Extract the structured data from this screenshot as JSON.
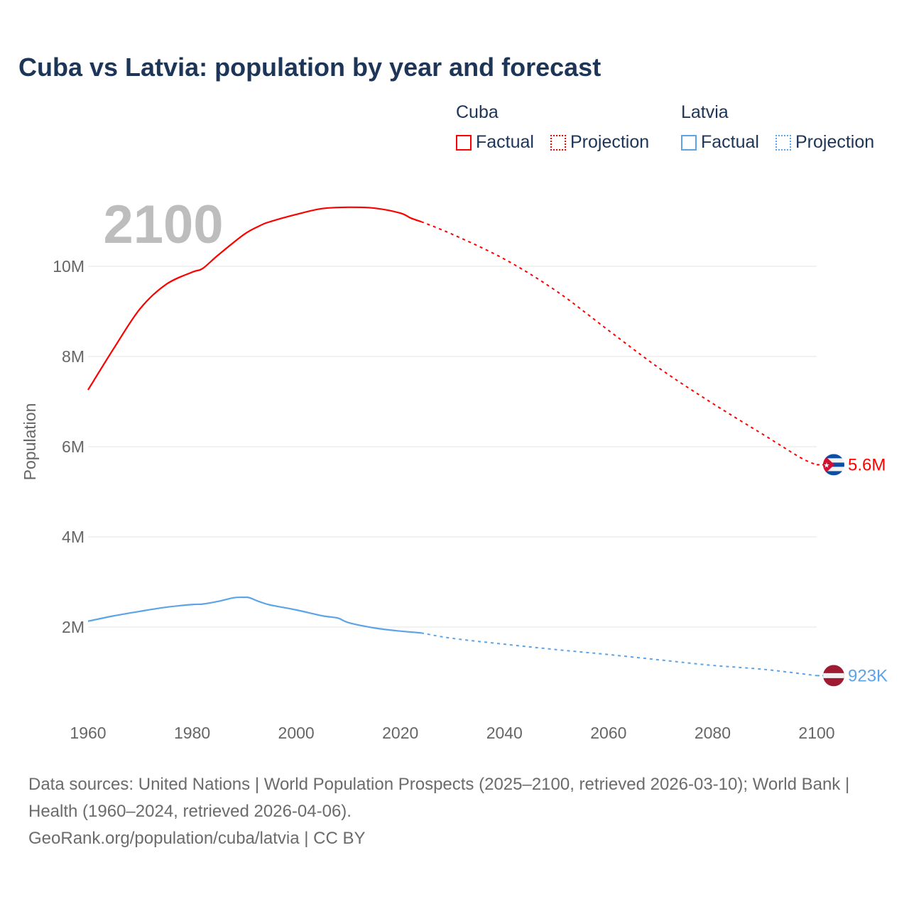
{
  "chart_data": {
    "type": "line",
    "title": "Cuba vs Latvia: population by year and forecast",
    "ylabel": "Population",
    "xlabel": "",
    "xlim": [
      1960,
      2100
    ],
    "ylim": [
      0,
      11500000
    ],
    "x_ticks": [
      "1960",
      "1980",
      "2000",
      "2020",
      "2040",
      "2060",
      "2080",
      "2100"
    ],
    "y_ticks": [
      {
        "value": 2000000,
        "label": "2M"
      },
      {
        "value": 4000000,
        "label": "4M"
      },
      {
        "value": 6000000,
        "label": "6M"
      },
      {
        "value": 8000000,
        "label": "8M"
      },
      {
        "value": 10000000,
        "label": "10M"
      }
    ],
    "grid": true,
    "year_overlay": "2100",
    "legend": {
      "placement": "top-right",
      "groups": [
        {
          "name": "Cuba",
          "factual": "Factual",
          "projection": "Projection"
        },
        {
          "name": "Latvia",
          "factual": "Factual",
          "projection": "Projection"
        }
      ]
    },
    "series": [
      {
        "name": "Cuba",
        "color": "#ff0000",
        "end_label": "5.6M",
        "flag": "cuba-flag",
        "factual": {
          "x": [
            1960,
            1965,
            1970,
            1975,
            1980,
            1982,
            1985,
            1990,
            1993,
            1995,
            2000,
            2005,
            2010,
            2015,
            2020,
            2022,
            2024
          ],
          "y": [
            7260000,
            8190000,
            9060000,
            9600000,
            9870000,
            9950000,
            10250000,
            10710000,
            10900000,
            10990000,
            11150000,
            11280000,
            11310000,
            11290000,
            11180000,
            11070000,
            10990000
          ]
        },
        "projection": {
          "x": [
            2024,
            2030,
            2040,
            2050,
            2060,
            2070,
            2080,
            2090,
            2097,
            2100
          ],
          "y": [
            10990000,
            10710000,
            10160000,
            9450000,
            8580000,
            7720000,
            6960000,
            6250000,
            5750000,
            5600000
          ]
        }
      },
      {
        "name": "Latvia",
        "color": "#5da3e8",
        "end_label": "923K",
        "flag": "latvia-flag",
        "factual": {
          "x": [
            1960,
            1965,
            1970,
            1975,
            1980,
            1982,
            1985,
            1988,
            1990,
            1991,
            1993,
            1995,
            2000,
            2005,
            2008,
            2010,
            2015,
            2020,
            2022,
            2024
          ],
          "y": [
            2130000,
            2250000,
            2350000,
            2440000,
            2500000,
            2510000,
            2570000,
            2650000,
            2660000,
            2650000,
            2560000,
            2490000,
            2380000,
            2250000,
            2200000,
            2100000,
            1980000,
            1910000,
            1890000,
            1870000
          ]
        },
        "projection": {
          "x": [
            2024,
            2030,
            2040,
            2050,
            2060,
            2070,
            2080,
            2090,
            2100
          ],
          "y": [
            1870000,
            1750000,
            1620000,
            1500000,
            1390000,
            1270000,
            1150000,
            1060000,
            923000
          ]
        }
      }
    ]
  },
  "footer": {
    "sources": "Data sources: United Nations | World Population Prospects (2025–2100, retrieved 2026-03-10); World Bank | Health (1960–2024, retrieved 2026-04-06).",
    "credit": "GeoRank.org/population/cuba/latvia | CC BY"
  }
}
